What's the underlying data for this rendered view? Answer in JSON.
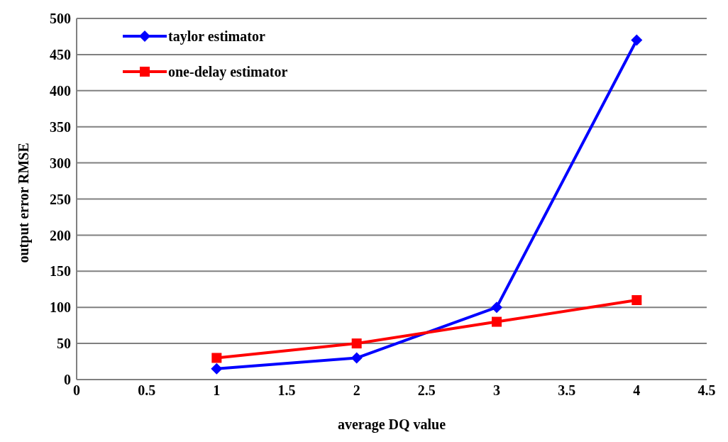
{
  "chart_data": {
    "type": "line",
    "xlabel": "average DQ value",
    "ylabel": "output error RMSE",
    "xlim": [
      0,
      4.5
    ],
    "xticks": [
      0,
      0.5,
      1,
      1.5,
      2,
      2.5,
      3,
      3.5,
      4,
      4.5
    ],
    "ylim": [
      0,
      500
    ],
    "yticks": [
      0,
      50,
      100,
      150,
      200,
      250,
      300,
      350,
      400,
      450,
      500
    ],
    "grid": "y",
    "legend": "top left",
    "series": [
      {
        "name": "taylor estimator",
        "color": "#0000ff",
        "marker": "diamond",
        "x": [
          1,
          2,
          3,
          4
        ],
        "values": [
          15,
          30,
          100,
          470
        ]
      },
      {
        "name": "one-delay estimator",
        "color": "#ff0000",
        "marker": "square",
        "x": [
          1,
          2,
          3,
          4
        ],
        "values": [
          30,
          50,
          80,
          110
        ]
      }
    ]
  }
}
